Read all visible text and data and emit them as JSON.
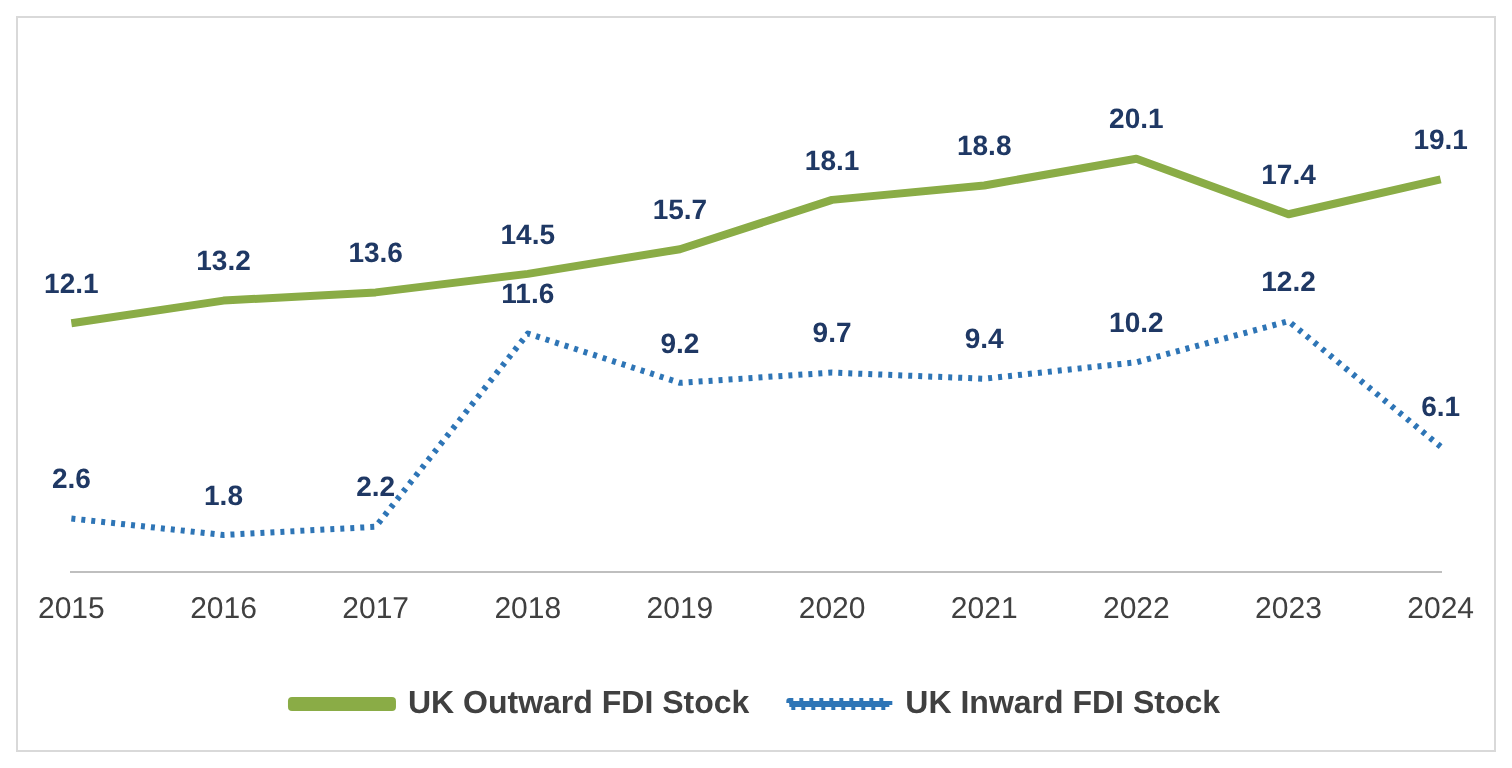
{
  "chart_data": {
    "type": "line",
    "categories": [
      "2015",
      "2016",
      "2017",
      "2018",
      "2019",
      "2020",
      "2021",
      "2022",
      "2023",
      "2024"
    ],
    "series": [
      {
        "name": "UK Outward FDI Stock",
        "color": "#8aac46",
        "line_style": "solid",
        "values": [
          12.1,
          13.2,
          13.6,
          14.5,
          15.7,
          18.1,
          18.8,
          20.1,
          17.4,
          19.1
        ]
      },
      {
        "name": "UK Inward FDI Stock",
        "color": "#2e75b6",
        "line_style": "dotted",
        "values": [
          2.6,
          1.8,
          2.2,
          11.6,
          9.2,
          9.7,
          9.4,
          10.2,
          12.2,
          6.1
        ]
      }
    ],
    "data_labels": true,
    "marker": "none",
    "grid": false,
    "legend": "bottom",
    "tick_labels": "x"
  }
}
